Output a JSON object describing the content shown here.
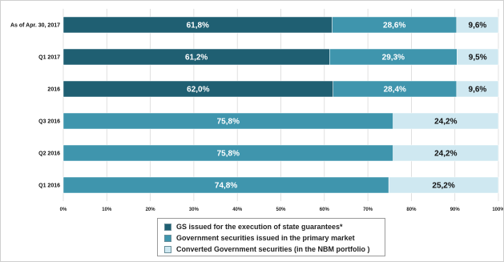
{
  "chart_data": {
    "type": "bar",
    "orientation": "horizontal",
    "stacked": true,
    "categories": [
      "As of Apr. 30, 2017",
      "Q1 2017",
      "2016",
      "Q3 2016",
      "Q2 2016",
      "Q1 2016"
    ],
    "series": [
      {
        "name": "GS issued for the execution of state guarantees*",
        "color": "#1f5f72",
        "values": [
          61.8,
          61.2,
          62.0,
          null,
          null,
          null
        ],
        "labels": [
          "61,8%",
          "61,2%",
          "62,0%",
          "",
          "",
          ""
        ]
      },
      {
        "name": "Government securities issued in the primary market",
        "color": "#3f95ad",
        "values": [
          28.6,
          29.3,
          28.4,
          75.8,
          75.8,
          74.8
        ],
        "labels": [
          "28,6%",
          "29,3%",
          "28,4%",
          "75,8%",
          "75,8%",
          "74,8%"
        ]
      },
      {
        "name": "Converted Government securities (in the NBM portfolio )",
        "color": "#cfe8f1",
        "values": [
          9.6,
          9.5,
          9.6,
          24.2,
          24.2,
          25.2
        ],
        "labels": [
          "9,6%",
          "9,5%",
          "9,6%",
          "24,2%",
          "24,2%",
          "25,2%"
        ]
      }
    ],
    "xlim": [
      0,
      100
    ],
    "xticks": [
      "0%",
      "10%",
      "20%",
      "30%",
      "40%",
      "50%",
      "60%",
      "70%",
      "80%",
      "90%",
      "100%"
    ],
    "grid": true,
    "legend_position": "bottom"
  }
}
